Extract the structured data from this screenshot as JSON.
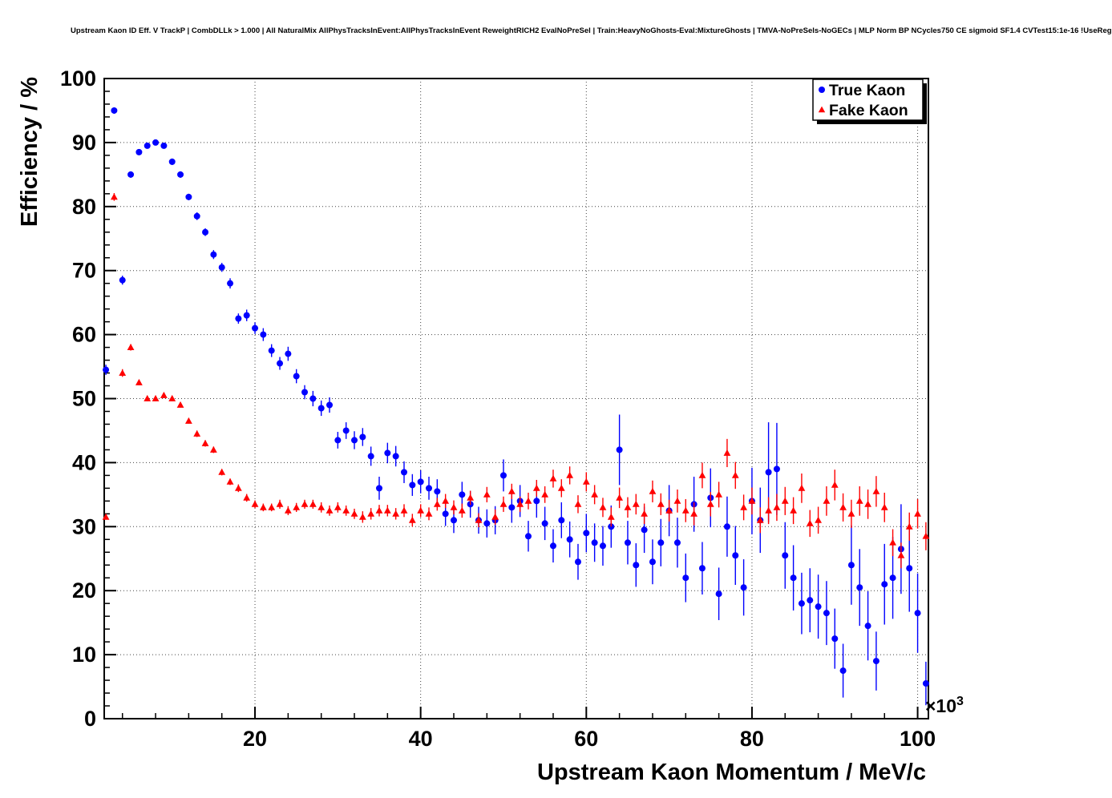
{
  "header": {
    "title": "Upstream Kaon ID Eff. V TrackP | CombDLLk > 1.000 | All NaturalMix AllPhysTracksInEvent:AllPhysTracksInEvent ReweightRICH2 EvalNoPreSel | Train:HeavyNoGhosts-Eval:MixtureGhosts | TMVA-NoPreSels-NoGECs | MLP Norm BP NCycles750 CE sigmoid SF1.4 CVTest15:1e-16 !UseReg"
  },
  "chart_data": {
    "type": "scatter",
    "title": "",
    "xlabel": "Upstream Kaon Momentum / MeV/c",
    "ylabel": "Efficiency / %",
    "x_scale": {
      "base": "×10",
      "exp": "3"
    },
    "x_unit_note": "momentum axis values are in units of 10^3 MeV/c",
    "xlim": [
      1.8,
      101.3
    ],
    "ylim": [
      0,
      100
    ],
    "x_ticks": [
      20,
      40,
      60,
      80,
      100
    ],
    "y_ticks": [
      0,
      10,
      20,
      30,
      40,
      50,
      60,
      70,
      80,
      90,
      100
    ],
    "x_minor_step": 4,
    "y_minor_step": 2,
    "grid": true,
    "grid_color": "#444444",
    "frame_color": "#000000",
    "legend": {
      "position": "top-right",
      "entries": [
        {
          "label": "True Kaon",
          "color": "#0000ff",
          "marker": "circle"
        },
        {
          "label": "Fake Kaon",
          "color": "#ff0000",
          "marker": "triangle"
        }
      ]
    },
    "series": [
      {
        "name": "True Kaon",
        "color": "#0000ff",
        "marker": "circle",
        "x": [
          2,
          3,
          4,
          5,
          6,
          7,
          8,
          9,
          10,
          11,
          12,
          13,
          14,
          15,
          16,
          17,
          18,
          19,
          20,
          21,
          22,
          23,
          24,
          25,
          26,
          27,
          28,
          29,
          30,
          31,
          32,
          33,
          34,
          35,
          36,
          37,
          38,
          39,
          40,
          41,
          42,
          43,
          44,
          45,
          46,
          47,
          48,
          49,
          50,
          51,
          52,
          53,
          54,
          55,
          56,
          57,
          58,
          59,
          60,
          61,
          62,
          63,
          64,
          65,
          66,
          67,
          68,
          69,
          70,
          71,
          72,
          73,
          74,
          75,
          76,
          77,
          78,
          79,
          80,
          81,
          82,
          83,
          84,
          85,
          86,
          87,
          88,
          89,
          90,
          91,
          92,
          93,
          94,
          95,
          96,
          97,
          98,
          99,
          100,
          101
        ],
        "y": [
          54.5,
          95,
          68.5,
          85,
          88.5,
          89.5,
          90,
          89.5,
          87,
          85,
          81.5,
          78.5,
          76,
          72.5,
          70.5,
          68,
          62.5,
          63,
          61,
          60,
          57.5,
          55.5,
          57,
          53.5,
          51,
          50,
          48.5,
          49,
          43.5,
          45,
          43.5,
          44,
          41,
          36,
          41.5,
          41,
          38.5,
          36.5,
          37,
          36,
          35.5,
          32,
          31,
          35,
          33.5,
          31,
          30.5,
          31,
          38,
          33,
          34,
          28.5,
          34,
          30.5,
          27,
          31,
          28,
          24.5,
          29,
          27.5,
          27,
          30,
          42,
          27.5,
          24,
          29.5,
          24.5,
          27.5,
          32.5,
          27.5,
          22,
          33.5,
          23.5,
          34.5,
          19.5,
          30,
          25.5,
          20.5,
          34,
          31,
          38.5,
          39,
          25.5,
          22,
          18,
          18.5,
          17.5,
          16.5,
          12.5,
          7.5,
          24,
          20.5,
          14.5,
          9,
          21,
          22,
          26.5,
          23.5,
          16.5,
          5.5
        ],
        "yerr": [
          0.8,
          0.5,
          0.7,
          0.5,
          0.4,
          0.4,
          0.4,
          0.4,
          0.5,
          0.5,
          0.5,
          0.6,
          0.6,
          0.7,
          0.7,
          0.8,
          0.8,
          0.9,
          0.9,
          1.0,
          1.0,
          1.0,
          1.1,
          1.1,
          1.1,
          1.2,
          1.2,
          1.2,
          1.3,
          1.3,
          1.4,
          1.4,
          1.5,
          1.8,
          1.6,
          1.6,
          1.7,
          1.7,
          1.8,
          1.8,
          1.9,
          1.9,
          2.0,
          2.0,
          2.1,
          2.1,
          2.2,
          2.2,
          2.5,
          2.4,
          2.5,
          2.4,
          2.6,
          2.6,
          2.6,
          2.8,
          2.8,
          2.8,
          3.0,
          3.0,
          3.1,
          3.3,
          5.5,
          3.4,
          3.4,
          3.6,
          3.5,
          3.7,
          4.0,
          3.9,
          3.8,
          4.3,
          4.1,
          4.6,
          4.1,
          4.7,
          4.6,
          4.4,
          5.2,
          5.1,
          7.8,
          7.2,
          5.2,
          5.1,
          4.8,
          5.0,
          5.0,
          5.0,
          4.7,
          4.2,
          6.2,
          6.0,
          5.4,
          4.6,
          6.3,
          6.4,
          7.0,
          6.8,
          6.2,
          3.4
        ]
      },
      {
        "name": "Fake Kaon",
        "color": "#ff0000",
        "marker": "triangle",
        "x": [
          2,
          3,
          4,
          5,
          6,
          7,
          8,
          9,
          10,
          11,
          12,
          13,
          14,
          15,
          16,
          17,
          18,
          19,
          20,
          21,
          22,
          23,
          24,
          25,
          26,
          27,
          28,
          29,
          30,
          31,
          32,
          33,
          34,
          35,
          36,
          37,
          38,
          39,
          40,
          41,
          42,
          43,
          44,
          45,
          46,
          47,
          48,
          49,
          50,
          51,
          52,
          53,
          54,
          55,
          56,
          57,
          58,
          59,
          60,
          61,
          62,
          63,
          64,
          65,
          66,
          67,
          68,
          69,
          70,
          71,
          72,
          73,
          74,
          75,
          76,
          77,
          78,
          79,
          80,
          81,
          82,
          83,
          84,
          85,
          86,
          87,
          88,
          89,
          90,
          91,
          92,
          93,
          94,
          95,
          96,
          97,
          98,
          99,
          100,
          101
        ],
        "y": [
          31.5,
          81.5,
          54,
          58,
          52.5,
          50,
          50,
          50.5,
          50,
          49,
          46.5,
          44.5,
          43,
          42,
          38.5,
          37,
          36,
          34.5,
          33.5,
          33,
          33,
          33.5,
          32.5,
          33,
          33.5,
          33.5,
          33,
          32.5,
          33,
          32.5,
          32,
          31.5,
          32,
          32.5,
          32.5,
          32,
          32.5,
          31,
          32.5,
          32,
          33.5,
          34,
          33,
          32.5,
          34.5,
          31,
          35,
          31.5,
          33.5,
          35.5,
          33.5,
          34,
          36,
          35,
          37.5,
          36,
          38,
          33.5,
          37,
          35,
          33,
          31.5,
          34.5,
          33,
          33.5,
          32,
          35.5,
          33.5,
          32.5,
          34,
          32.5,
          32,
          38,
          33.5,
          35,
          41.5,
          38,
          33,
          34,
          31,
          32.5,
          33,
          34,
          32.5,
          36,
          30.5,
          31,
          34,
          36.5,
          33,
          32,
          34,
          33.5,
          35.5,
          33,
          27.5,
          25.5,
          30,
          32,
          28.5
        ],
        "yerr": [
          0.4,
          0.6,
          0.6,
          0.5,
          0.4,
          0.4,
          0.4,
          0.4,
          0.4,
          0.4,
          0.4,
          0.5,
          0.5,
          0.5,
          0.5,
          0.5,
          0.6,
          0.6,
          0.6,
          0.6,
          0.6,
          0.7,
          0.7,
          0.7,
          0.7,
          0.7,
          0.8,
          0.8,
          0.8,
          0.8,
          0.8,
          0.9,
          0.9,
          0.9,
          0.9,
          0.9,
          1.0,
          1.0,
          1.0,
          1.0,
          1.0,
          1.1,
          1.1,
          1.1,
          1.1,
          1.1,
          1.2,
          1.2,
          1.2,
          1.2,
          1.2,
          1.3,
          1.3,
          1.3,
          1.4,
          1.4,
          1.4,
          1.4,
          1.5,
          1.5,
          1.5,
          1.5,
          1.6,
          1.6,
          1.6,
          1.6,
          1.7,
          1.7,
          1.7,
          1.8,
          1.8,
          1.8,
          2.0,
          1.9,
          2.0,
          2.2,
          2.1,
          2.0,
          2.1,
          2.0,
          2.1,
          2.1,
          2.2,
          2.1,
          2.3,
          2.1,
          2.1,
          2.3,
          2.4,
          2.2,
          2.2,
          2.3,
          2.3,
          2.4,
          2.3,
          2.1,
          2.0,
          2.2,
          2.3,
          2.2
        ]
      }
    ]
  }
}
